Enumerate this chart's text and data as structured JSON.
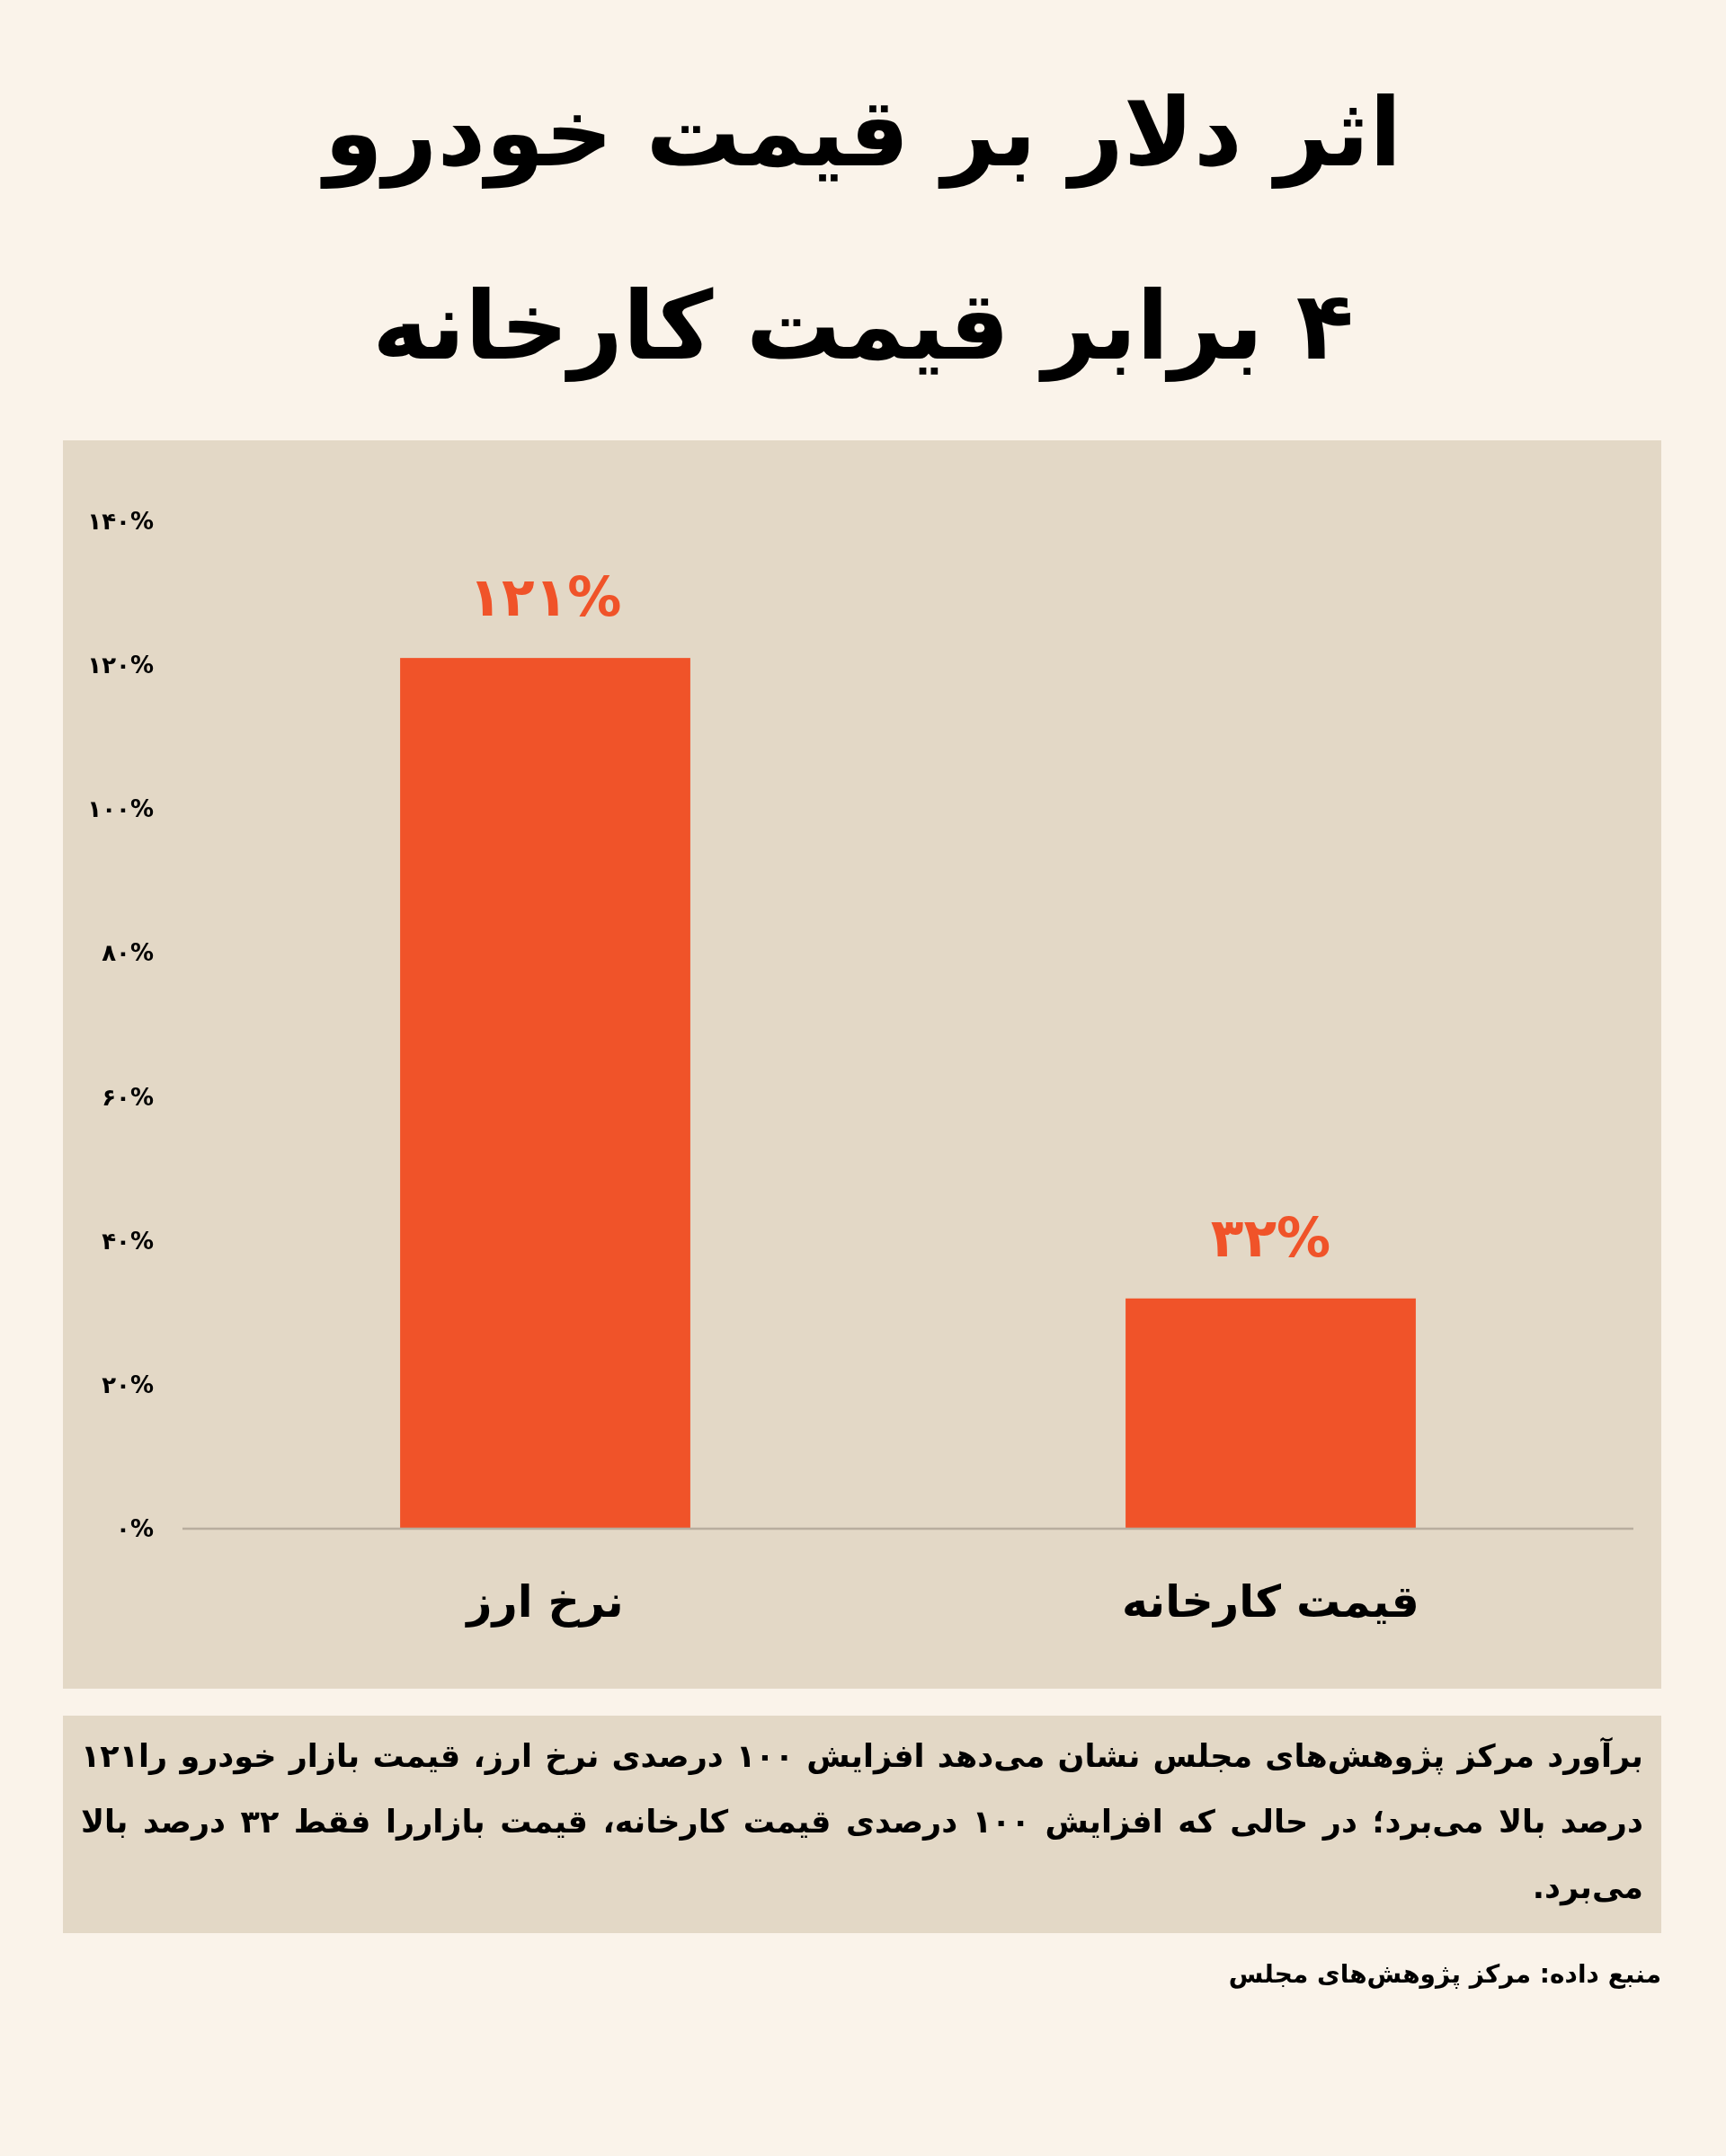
{
  "chart_data": {
    "type": "bar",
    "title": "اثر دلار بر قیمت خودرو",
    "subtitle": "۴ برابر قیمت کارخانه",
    "categories": [
      "نرخ ارز",
      "قیمت کارخانه"
    ],
    "values": [
      121,
      32
    ],
    "value_labels": [
      "۱۲۱%",
      "۳۲%"
    ],
    "color": "#f05329",
    "ylim": [
      0,
      140
    ],
    "yticks": [
      {
        "value": 0,
        "label": "۰%"
      },
      {
        "value": 20,
        "label": "۲۰%"
      },
      {
        "value": 40,
        "label": "۴۰%"
      },
      {
        "value": 60,
        "label": "۶۰%"
      },
      {
        "value": 80,
        "label": "۸۰%"
      },
      {
        "value": 100,
        "label": "۱۰۰%"
      },
      {
        "value": 120,
        "label": "۱۲۰%"
      },
      {
        "value": 140,
        "label": "۱۴۰%"
      }
    ],
    "annotations": [
      "برآورد مرکز پژوهش‌های مجلس نشان می‌دهد افزایش ۱۰۰ درصدی نرخ ارز، قیمت بازار خودرو را۱۲۱ درصد بالا می‌برد؛ در حالی که افزایش ۱۰۰ درصدی قیمت کارخانه، قیمت بازاررا فقط ۳۲ درصد بالا می‌برد.",
      "منبع داده: مرکز پژوهش‌های مجلس"
    ]
  }
}
